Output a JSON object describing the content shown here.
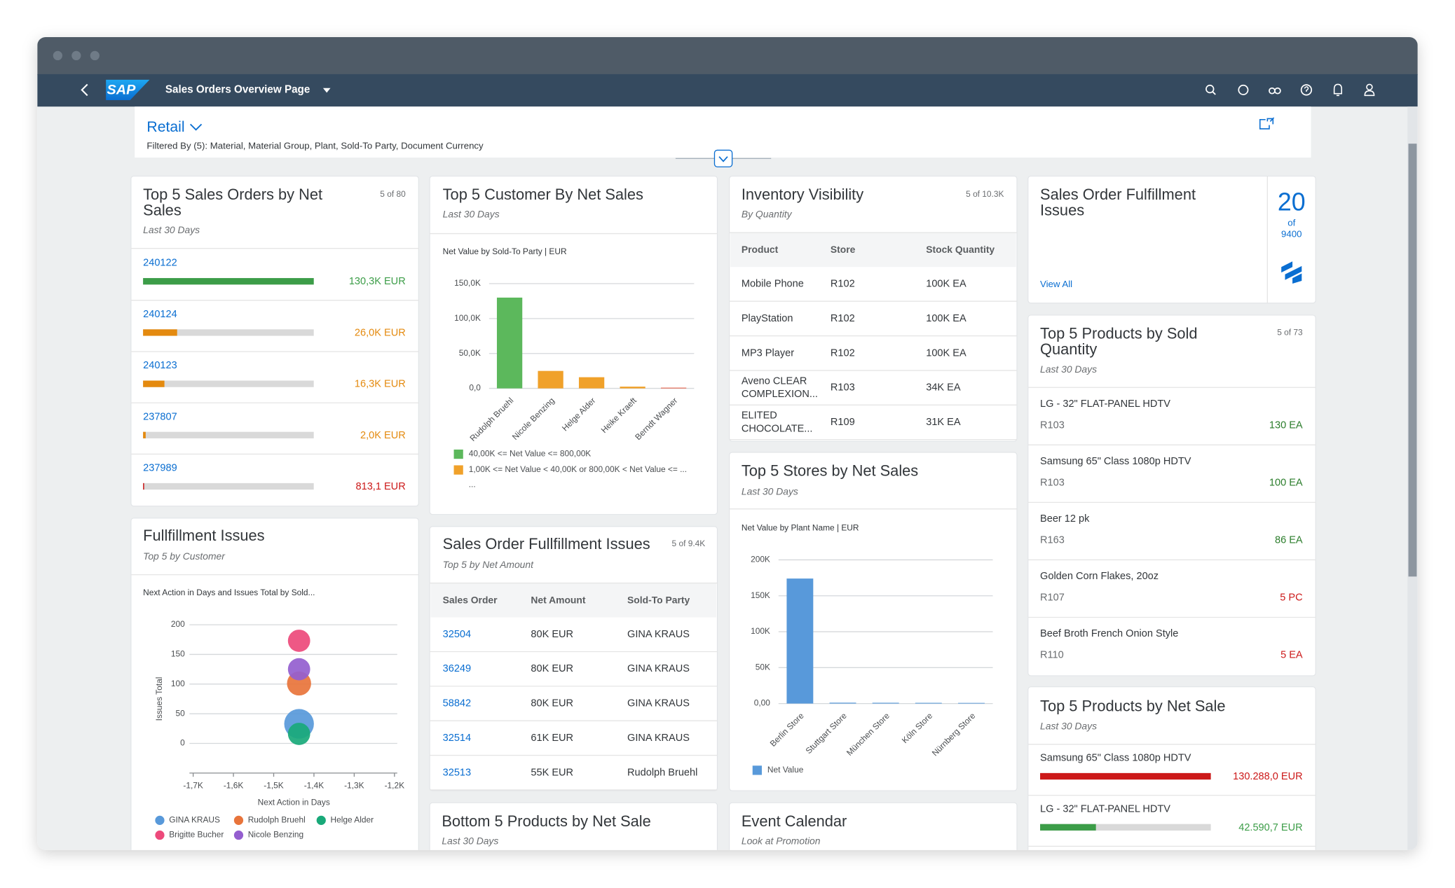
{
  "header": {
    "logo": "SAP",
    "title": "Sales Orders Overview Page"
  },
  "filter": {
    "variant": "Retail",
    "filtered_by": "Filtered By (5): Material, Material Group, Plant, Sold-To Party, Document Currency"
  },
  "top_sales_orders": {
    "title_lines": [
      "Top 5 Sales Orders by Net",
      "Sales"
    ],
    "subtitle": "Last 30 Days",
    "count": "5 of 80",
    "items": [
      {
        "id": "240122",
        "value": 130300,
        "label": "130,3K EUR",
        "color": "#3c9d48"
      },
      {
        "id": "240124",
        "value": 26000,
        "label": "26,0K EUR",
        "color": "#e48a0f"
      },
      {
        "id": "240123",
        "value": 16300,
        "label": "16,3K EUR",
        "color": "#e48a0f"
      },
      {
        "id": "237807",
        "value": 2000,
        "label": "2,0K EUR",
        "color": "#e48a0f"
      },
      {
        "id": "237989",
        "value": 813.1,
        "label": "813,1 EUR",
        "color": "#cc1919"
      }
    ]
  },
  "customer_chart": {
    "type": "bar",
    "title": "Top 5 Customer By Net Sales",
    "subtitle": "Last 30 Days",
    "chart_title": "Net Value by Sold-To Party | EUR",
    "categories": [
      "Rudolph Bruehl",
      "Nicole Benzing",
      "Helge Alder",
      "Heike Kraeft",
      "Berndt Wagner"
    ],
    "values": [
      130000,
      25000,
      16000,
      2500,
      1000
    ],
    "colors": [
      "#5cb85c",
      "#f0a12a",
      "#f0a12a",
      "#f0a12a",
      "#e5553b"
    ],
    "ylim": [
      0,
      150000
    ],
    "yticks": [
      {
        "value": 0,
        "label": "0,0"
      },
      {
        "value": 50000,
        "label": "50,0K"
      },
      {
        "value": 100000,
        "label": "100,0K"
      },
      {
        "value": 150000,
        "label": "150,0K"
      }
    ],
    "legend": [
      {
        "label": "40,00K <= Net Value <= 800,00K",
        "color": "#5cb85c"
      },
      {
        "label": "1,00K <= Net Value < 40,00K or 800,00K < Net Value <= ...",
        "color": "#f0a12a"
      }
    ],
    "legend_more": "..."
  },
  "inventory": {
    "title": "Inventory Visibility",
    "subtitle": "By Quantity",
    "count": "5 of 10.3K",
    "columns": [
      "Product",
      "Store",
      "Stock Quantity"
    ],
    "rows": [
      [
        [
          "Mobile Phone"
        ],
        "R102",
        "100K EA"
      ],
      [
        [
          "PlayStation"
        ],
        "R102",
        "100K EA"
      ],
      [
        [
          "MP3 Player"
        ],
        "R102",
        "100K EA"
      ],
      [
        [
          "Aveno CLEAR",
          "COMPLEXION..."
        ],
        "R103",
        "34K EA"
      ],
      [
        [
          "ELITED",
          "CHOCOLATE..."
        ],
        "R109",
        "31K EA"
      ]
    ]
  },
  "kpi": {
    "title_lines": [
      "Sales Order Fulfillment",
      "Issues"
    ],
    "value": "20",
    "of": "of",
    "total": "9400",
    "link": "View All"
  },
  "sold_quantity": {
    "title_lines": [
      "Top 5 Products by Sold",
      "Quantity"
    ],
    "subtitle": "Last 30 Days",
    "count": "5 of 73",
    "items": [
      {
        "name": "LG - 32\" FLAT-PANEL HDTV",
        "store": "R103",
        "qty": "130 EA",
        "color": "#2b7d2b"
      },
      {
        "name": "Samsung 65\" Class 1080p HDTV",
        "store": "R103",
        "qty": "100 EA",
        "color": "#2b7d2b"
      },
      {
        "name": "Beer 12 pk",
        "store": "R163",
        "qty": "86 EA",
        "color": "#2b7d2b"
      },
      {
        "name": "Golden Corn Flakes, 20oz",
        "store": "R107",
        "qty": "5 PC",
        "color": "#cc1919"
      },
      {
        "name": "Beef Broth French Onion Style",
        "store": "R110",
        "qty": "5 EA",
        "color": "#cc1919"
      }
    ]
  },
  "fulfillment_chart": {
    "type": "bubble",
    "title": "Fullfillment Issues",
    "subtitle": "Top 5 by Customer",
    "chart_title": "Next Action in Days and Issues Total by Sold...",
    "xlabel": "Next Action in Days",
    "ylabel": "Issues Total",
    "xlim": [
      -1700,
      -1200
    ],
    "xticks": [
      {
        "value": -1700,
        "label": "-1,7K"
      },
      {
        "value": -1600,
        "label": "-1,6K"
      },
      {
        "value": -1500,
        "label": "-1,5K"
      },
      {
        "value": -1400,
        "label": "-1,4K"
      },
      {
        "value": -1300,
        "label": "-1,3K"
      },
      {
        "value": -1200,
        "label": "-1,2K"
      }
    ],
    "ylim": [
      -50,
      200
    ],
    "yticks": [
      0,
      50,
      100,
      150,
      200
    ],
    "series": [
      {
        "name": "GINA KRAUS",
        "color": "#5899da",
        "x": [
          -1437
        ],
        "values": [
          33
        ],
        "sizes": [
          16
        ]
      },
      {
        "name": "Rudolph Bruehl",
        "color": "#e8743b",
        "x": [
          -1437
        ],
        "values": [
          101
        ],
        "sizes": [
          13
        ]
      },
      {
        "name": "Helge Alder",
        "color": "#19a979",
        "x": [
          -1437
        ],
        "values": [
          16
        ],
        "sizes": [
          12
        ]
      },
      {
        "name": "Brigitte Bucher",
        "color": "#ed4a7b",
        "x": [
          -1437
        ],
        "values": [
          173
        ],
        "sizes": [
          12
        ]
      },
      {
        "name": "Nicole Benzing",
        "color": "#945ecf",
        "x": [
          -1437
        ],
        "values": [
          125
        ],
        "sizes": [
          12
        ]
      }
    ]
  },
  "so_table": {
    "title": "Sales Order Fullfillment Issues",
    "subtitle": "Top 5 by Net Amount",
    "count": "5 of 9.4K",
    "columns": [
      "Sales Order",
      "Net Amount",
      "Sold-To Party"
    ],
    "rows": [
      [
        "32504",
        "80K EUR",
        "GINA KRAUS"
      ],
      [
        "36249",
        "80K EUR",
        "GINA KRAUS"
      ],
      [
        "58842",
        "80K EUR",
        "GINA KRAUS"
      ],
      [
        "32514",
        "61K EUR",
        "GINA KRAUS"
      ],
      [
        "32513",
        "55K EUR",
        "Rudolph Bruehl"
      ]
    ]
  },
  "stores_chart": {
    "type": "bar",
    "title": "Top 5 Stores by Net Sales",
    "subtitle": "Last 30 Days",
    "chart_title": "Net Value by Plant Name | EUR",
    "categories": [
      "Berlin Store",
      "Stuttgart Store",
      "München Store",
      "Köln Store",
      "Nürnberg Store"
    ],
    "values": [
      174000,
      1200,
      1100,
      1000,
      900
    ],
    "color": "#5899da",
    "ylim": [
      0,
      200000
    ],
    "yticks": [
      {
        "value": 0,
        "label": "0,00"
      },
      {
        "value": 50000,
        "label": "50K"
      },
      {
        "value": 100000,
        "label": "100K"
      },
      {
        "value": 150000,
        "label": "150K"
      },
      {
        "value": 200000,
        "label": "200K"
      }
    ],
    "legend": [
      {
        "label": "Net Value",
        "color": "#5899da"
      }
    ]
  },
  "net_sale": {
    "title": "Top 5 Products by Net Sale",
    "subtitle": "Last 30 Days",
    "items": [
      {
        "name": "Samsung 65\" Class 1080p HDTV",
        "value": 130288,
        "label": "130.288,0 EUR",
        "color": "#cc1919"
      },
      {
        "name": "LG - 32\" FLAT-PANEL HDTV",
        "value": 42590.7,
        "label": "42.590,7 EUR",
        "color": "#3c9d48"
      }
    ]
  },
  "bottom_products": {
    "title": "Bottom 5 Products by Net Sale",
    "subtitle": "Last 30 Days"
  },
  "event_calendar": {
    "title": "Event Calendar",
    "subtitle": "Look at Promotion"
  }
}
